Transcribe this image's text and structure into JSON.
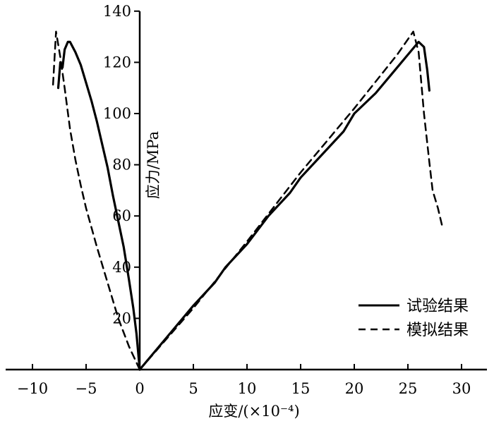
{
  "chart_data": {
    "type": "line",
    "xlabel": "应变/(×10⁻⁴)",
    "ylabel": "应力/MPa",
    "xlim": [
      -12,
      32
    ],
    "ylim": [
      0,
      140
    ],
    "x_ticks": [
      -10,
      -5,
      0,
      5,
      10,
      15,
      20,
      25,
      30
    ],
    "x_tick_labels": [
      "−10",
      "−5",
      "0",
      "5",
      "10",
      "15",
      "20",
      "25",
      "30"
    ],
    "y_ticks": [
      20,
      40,
      60,
      80,
      100,
      120,
      140
    ],
    "y_tick_labels": [
      "20",
      "40",
      "60",
      "80",
      "100",
      "120",
      "140"
    ],
    "grid": false,
    "legend_position": "bottom-right",
    "series": [
      {
        "name": "试验结果",
        "style": "solid",
        "color": "#000000",
        "x": [
          0,
          1,
          3,
          5,
          7,
          8,
          10,
          12,
          14,
          15,
          17,
          19,
          20,
          22,
          24,
          25,
          26,
          26.5,
          26.8,
          27.0
        ],
        "y": [
          0,
          5,
          15,
          25,
          34,
          40,
          49,
          60,
          69,
          75,
          84,
          93,
          100,
          108,
          118,
          123,
          128,
          126,
          117,
          109
        ],
        "x2": [
          0,
          -0.3,
          -0.6,
          -1.0,
          -1.5,
          -2.0,
          -2.5,
          -3.0,
          -3.5,
          -4.0,
          -4.5,
          -5.0,
          -5.5,
          -6.0,
          -6.5,
          -6.7,
          -7.0,
          -7.2,
          -7.4,
          -7.6
        ],
        "y2": [
          0,
          14,
          24,
          35,
          48,
          58,
          68,
          79,
          88,
          97,
          105,
          112,
          119,
          124,
          128,
          128,
          125,
          118,
          120,
          110
        ]
      },
      {
        "name": "模拟结果",
        "style": "dashed",
        "color": "#000000",
        "x": [
          0,
          5,
          10,
          15,
          20,
          24,
          25.5,
          26,
          26.5,
          27,
          27.3,
          27.8,
          28.2
        ],
        "y": [
          0,
          24,
          50,
          77,
          102,
          123,
          132,
          124,
          100,
          81,
          70,
          63,
          56
        ],
        "x2": [
          0,
          -1,
          -2,
          -3,
          -4,
          -5,
          -5.5,
          -6,
          -6.5,
          -7,
          -7.4,
          -7.8,
          -8.1
        ],
        "y2": [
          0,
          9,
          20,
          34,
          48,
          63,
          72,
          82,
          94,
          110,
          122,
          132,
          110
        ]
      }
    ]
  }
}
